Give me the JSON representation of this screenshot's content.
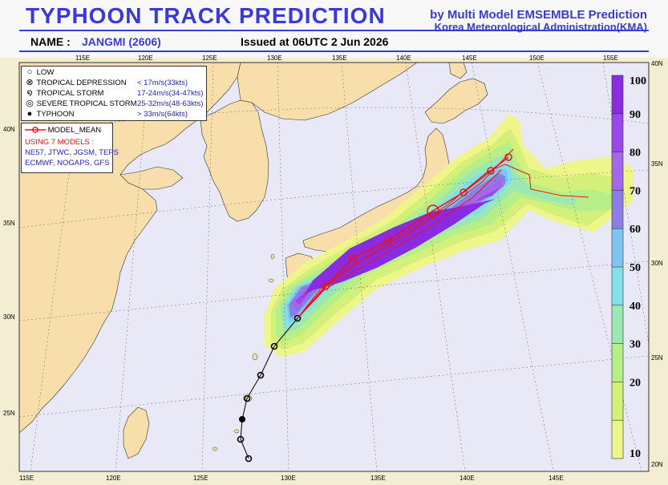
{
  "header": {
    "title": "TYPHOON  TRACK  PREDICTION",
    "subtitle1": "by Multi Model EMSEMBLE Prediction",
    "subtitle2": "Korea Meteorological Administration(KMA)",
    "name_label": "NAME :",
    "name_value": "JANGMI (2606)",
    "issued": "Issued at  06UTC  2 Jun 2026"
  },
  "legend_intensity": [
    {
      "icon": "low-icon",
      "label": "LOW",
      "speed": ""
    },
    {
      "icon": "tropical-depression-icon",
      "label": "TROPICAL DEPRESSION",
      "speed": "< 17m/s(33kts)"
    },
    {
      "icon": "tropical-storm-icon",
      "label": "TROPICAL STORM",
      "speed": "17-24m/s(34-47kts)"
    },
    {
      "icon": "severe-tropical-storm-icon",
      "label": "SEVERE TROPICAL STORM",
      "speed": "25-32m/s(48-63kts)"
    },
    {
      "icon": "typhoon-icon",
      "label": "TYPHOON",
      "speed": "> 33m/s(64kts)"
    }
  ],
  "legend_models": {
    "mean_label": "MODEL_MEAN",
    "using": "USING 7 MODELS :",
    "models_line1": "NE57, JTWC, JGSM, TEPS",
    "models_line2": "ECMWF, NOGAPS, GFS"
  },
  "colors": {
    "sea": "#e8e8f6",
    "land": "#f8deaa",
    "track_observed": "#000000",
    "track_forecast": "#ee1111"
  },
  "lon_ticks_top": [
    "115E",
    "120E",
    "125E",
    "130E",
    "135E",
    "140E",
    "145E",
    "150E",
    "155E"
  ],
  "lon_ticks_bottom": [
    "115E",
    "120E",
    "125E",
    "130E",
    "135E",
    "140E",
    "145E"
  ],
  "lat_ticks_left": [
    "40N",
    "35N",
    "30N",
    "25N"
  ],
  "lat_ticks_right": [
    "40N",
    "35N",
    "30N",
    "25N",
    "20N"
  ],
  "colorbar": {
    "labels": [
      "100",
      "90",
      "80",
      "70",
      "60",
      "50",
      "40",
      "30",
      "20",
      "10"
    ],
    "colors": [
      "#8a2be2",
      "#9a48e6",
      "#a466ea",
      "#8b7fe6",
      "#7ec4ee",
      "#84e0e8",
      "#9de8b2",
      "#b6ee88",
      "#d2f07a",
      "#eef68a"
    ]
  }
}
